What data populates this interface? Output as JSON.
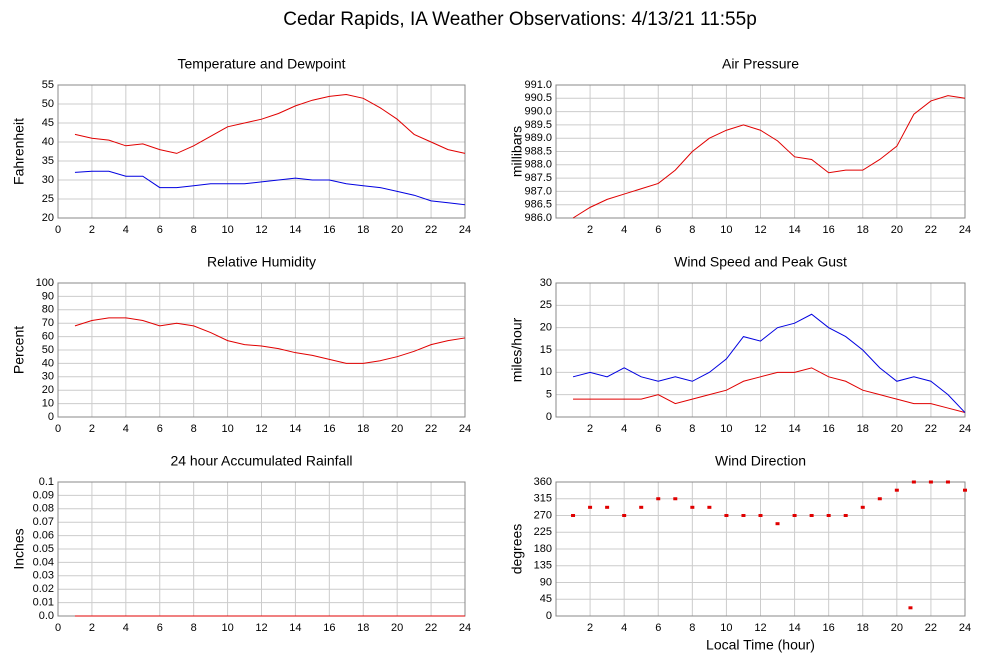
{
  "title": "Cedar Rapids, IA Weather Observations: 4/13/21 11:55p",
  "chart_data": [
    {
      "type": "line",
      "title": "Temperature and Dewpoint",
      "ylabel": "Fahrenheit",
      "x": [
        1,
        2,
        3,
        4,
        5,
        6,
        7,
        8,
        9,
        10,
        11,
        12,
        13,
        14,
        15,
        16,
        17,
        18,
        19,
        20,
        21,
        22,
        23,
        24
      ],
      "series": [
        {
          "color": "#e00000",
          "values": [
            42,
            41,
            40.5,
            39,
            39.5,
            38,
            37,
            39,
            41.5,
            44,
            45,
            46,
            47.5,
            49.5,
            51,
            52,
            52.5,
            51.5,
            49,
            46,
            42,
            40,
            38,
            37
          ]
        },
        {
          "color": "#0000e0",
          "values": [
            32,
            32.3,
            32.3,
            31,
            31,
            28,
            28,
            28.5,
            29,
            29,
            29,
            29.5,
            30,
            30.5,
            30,
            30,
            29,
            28.5,
            28,
            27,
            26,
            24.5,
            24,
            23.5
          ]
        }
      ],
      "xlim": [
        0,
        24
      ],
      "xticks": [
        0,
        2,
        4,
        6,
        8,
        10,
        12,
        14,
        16,
        18,
        20,
        22,
        24
      ],
      "ylim": [
        20,
        55
      ],
      "yticks": [
        20,
        25,
        30,
        35,
        40,
        45,
        50,
        55
      ],
      "grid": true
    },
    {
      "type": "line",
      "title": "Air Pressure",
      "ylabel": "millibars",
      "x": [
        1,
        2,
        3,
        4,
        5,
        6,
        7,
        8,
        9,
        10,
        11,
        12,
        13,
        14,
        15,
        16,
        17,
        18,
        19,
        20,
        21,
        22,
        23,
        24
      ],
      "series": [
        {
          "color": "#e00000",
          "values": [
            986.0,
            986.4,
            986.7,
            986.9,
            987.1,
            987.3,
            987.8,
            988.5,
            989.0,
            989.3,
            989.5,
            989.3,
            988.9,
            988.3,
            988.2,
            987.7,
            987.8,
            987.8,
            988.2,
            988.7,
            989.9,
            990.4,
            990.6,
            990.5
          ]
        }
      ],
      "xlim": [
        0,
        24
      ],
      "xticks": [
        2,
        4,
        6,
        8,
        10,
        12,
        14,
        16,
        18,
        20,
        22,
        24
      ],
      "ylim": [
        986,
        991
      ],
      "yticks": [
        {
          "value": 986,
          "label": "986.0"
        },
        986.5,
        {
          "value": 987,
          "label": "987.0"
        },
        987.5,
        {
          "value": 988,
          "label": "988.0"
        },
        988.5,
        {
          "value": 989,
          "label": "989.0"
        },
        989.5,
        {
          "value": 990,
          "label": "990.0"
        },
        990.5,
        {
          "value": 991,
          "label": "991.0"
        }
      ],
      "grid": true
    },
    {
      "type": "line",
      "title": "Relative Humidity",
      "ylabel": "Percent",
      "x": [
        1,
        2,
        3,
        4,
        5,
        6,
        7,
        8,
        9,
        10,
        11,
        12,
        13,
        14,
        15,
        16,
        17,
        18,
        19,
        20,
        21,
        22,
        23,
        24
      ],
      "series": [
        {
          "color": "#e00000",
          "values": [
            68,
            72,
            74,
            74,
            72,
            68,
            70,
            68,
            63,
            57,
            54,
            53,
            51,
            48,
            46,
            43,
            40,
            40,
            42,
            45,
            49,
            54,
            57,
            59
          ]
        }
      ],
      "xlim": [
        0,
        24
      ],
      "xticks": [
        0,
        2,
        4,
        6,
        8,
        10,
        12,
        14,
        16,
        18,
        20,
        22,
        24
      ],
      "ylim": [
        0,
        100
      ],
      "yticks": [
        0,
        10,
        20,
        30,
        40,
        50,
        60,
        70,
        80,
        90,
        100
      ],
      "grid": true
    },
    {
      "type": "line",
      "title": "Wind Speed and Peak Gust",
      "ylabel": "miles/hour",
      "x": [
        1,
        2,
        3,
        4,
        5,
        6,
        7,
        8,
        9,
        10,
        11,
        12,
        13,
        14,
        15,
        16,
        17,
        18,
        19,
        20,
        21,
        22,
        23,
        24
      ],
      "series": [
        {
          "color": "#e00000",
          "values": [
            4,
            4,
            4,
            4,
            4,
            5,
            3,
            4,
            5,
            6,
            8,
            9,
            10,
            10,
            11,
            9,
            8,
            6,
            5,
            4,
            3,
            3,
            2,
            1
          ]
        },
        {
          "color": "#0000e0",
          "values": [
            9,
            10,
            9,
            11,
            9,
            8,
            9,
            8,
            10,
            13,
            18,
            17,
            20,
            21,
            23,
            20,
            18,
            15,
            11,
            8,
            9,
            8,
            5,
            1
          ]
        }
      ],
      "xlim": [
        0,
        24
      ],
      "xticks": [
        2,
        4,
        6,
        8,
        10,
        12,
        14,
        16,
        18,
        20,
        22,
        24
      ],
      "ylim": [
        0,
        30
      ],
      "yticks": [
        0,
        5,
        10,
        15,
        20,
        25,
        30
      ],
      "grid": true
    },
    {
      "type": "line",
      "title": "24 hour Accumulated Rainfall",
      "ylabel": "Inches",
      "x": [
        1,
        24
      ],
      "series": [
        {
          "color": "#e00000",
          "values": [
            0,
            0
          ]
        }
      ],
      "xlim": [
        0,
        24
      ],
      "xticks": [
        0,
        2,
        4,
        6,
        8,
        10,
        12,
        14,
        16,
        18,
        20,
        22,
        24
      ],
      "ylim": [
        0,
        0.1
      ],
      "yticks": [
        {
          "value": 0,
          "label": "0.0"
        },
        0.01,
        0.02,
        0.03,
        0.04,
        0.05,
        0.06,
        0.07,
        0.08,
        0.09,
        0.1
      ],
      "grid": true
    },
    {
      "type": "scatter",
      "title": "Wind Direction",
      "ylabel": "degrees",
      "xlabel": "Local Time (hour)",
      "x": [
        1,
        2,
        3,
        4,
        5,
        6,
        7,
        8,
        9,
        10,
        11,
        12,
        13,
        14,
        15,
        16,
        17,
        18,
        19,
        20,
        20.8,
        21,
        22,
        23,
        24
      ],
      "series": [
        {
          "color": "#e00000",
          "values": [
            270,
            292,
            292,
            270,
            292,
            315,
            315,
            292,
            292,
            270,
            270,
            270,
            248,
            270,
            270,
            270,
            270,
            292,
            315,
            338,
            22,
            360,
            360,
            360,
            338
          ]
        }
      ],
      "xlim": [
        0,
        24
      ],
      "xticks": [
        2,
        4,
        6,
        8,
        10,
        12,
        14,
        16,
        18,
        20,
        22,
        24
      ],
      "ylim": [
        0,
        360
      ],
      "yticks": [
        0,
        45,
        90,
        135,
        180,
        225,
        270,
        315,
        360
      ],
      "grid": true
    }
  ]
}
